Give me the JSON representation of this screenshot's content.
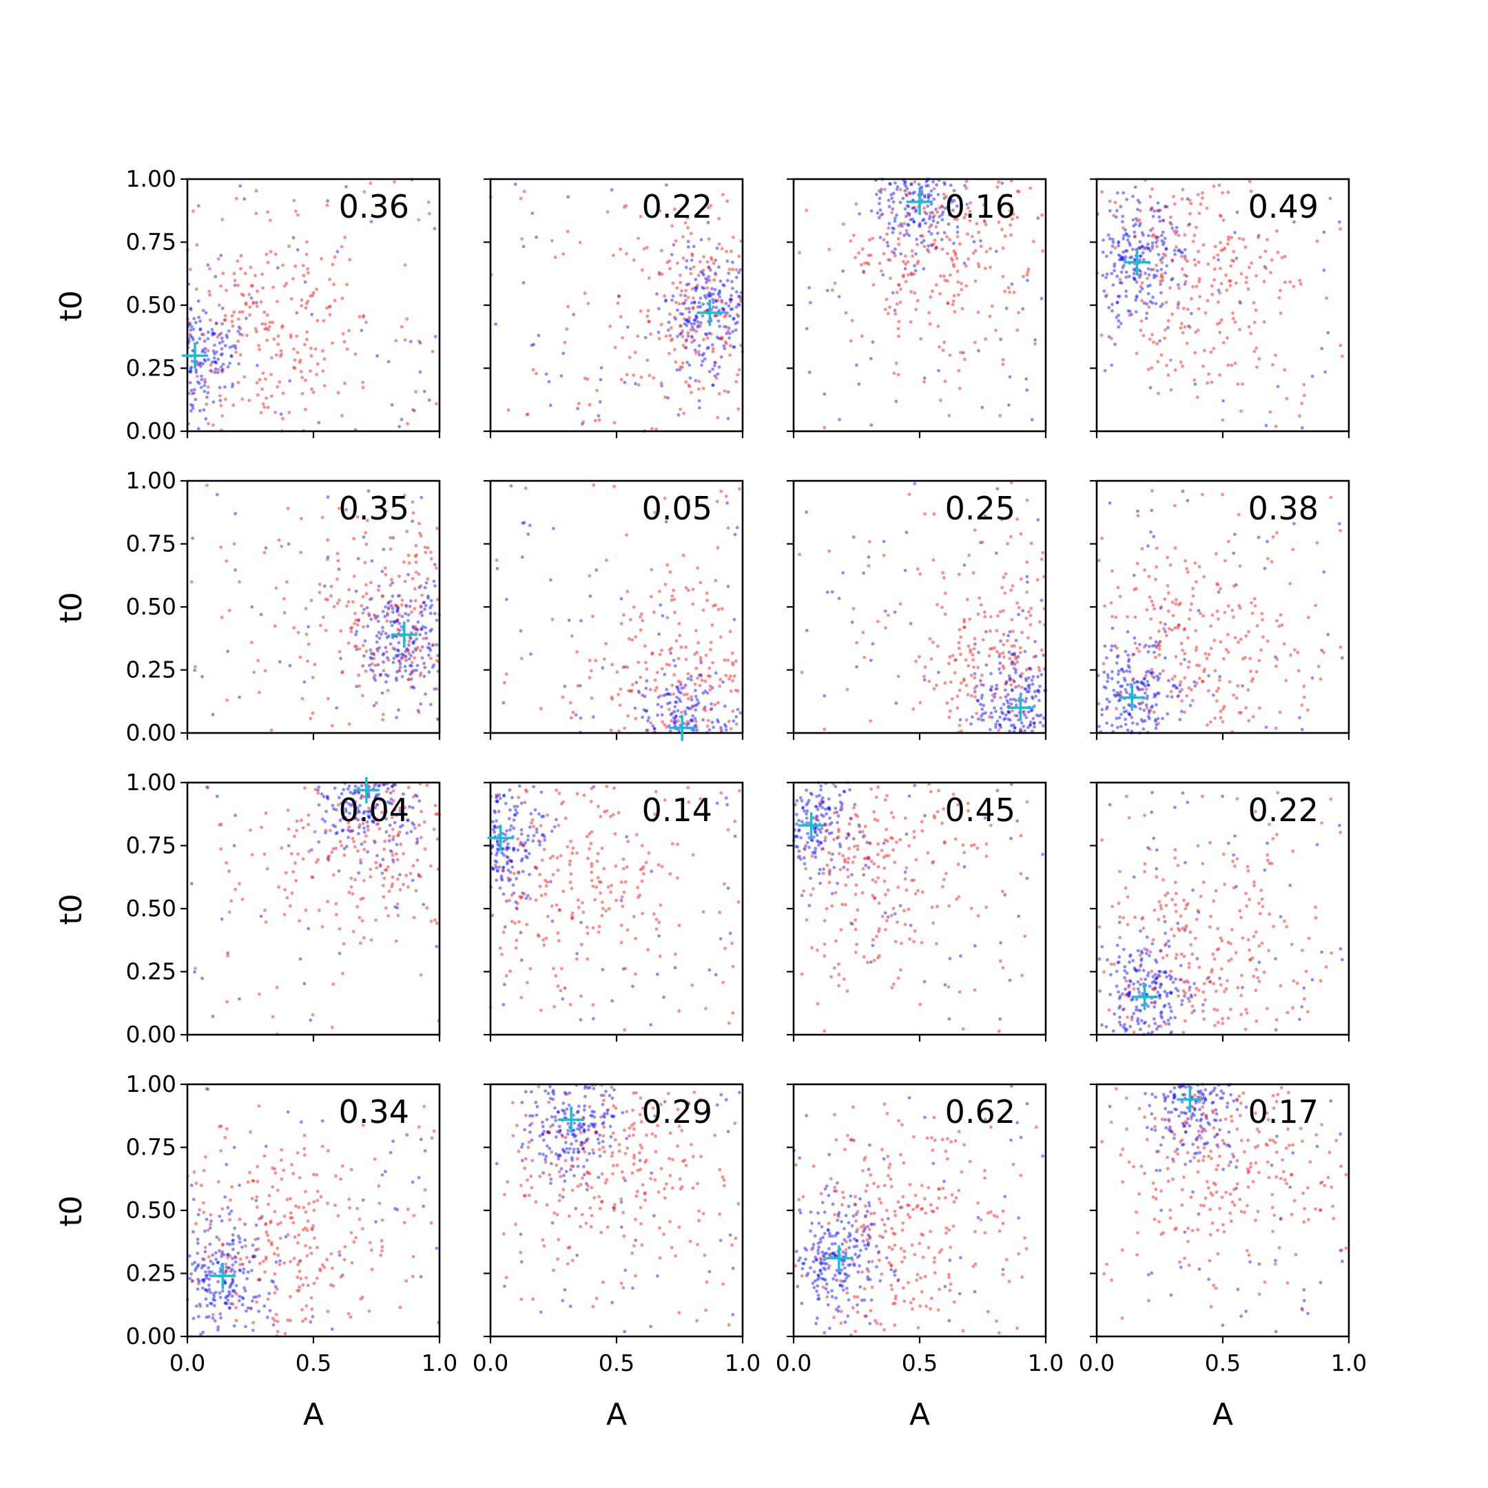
{
  "chart_data": {
    "type": "scatter",
    "layout": "4x4 grid",
    "xlabel": "A",
    "ylabel": "t0",
    "xlim": [
      0.0,
      1.0
    ],
    "ylim": [
      0.0,
      1.0
    ],
    "x_ticks": [
      "0.0",
      "0.5",
      "1.0"
    ],
    "y_ticks": [
      "0.00",
      "0.25",
      "0.50",
      "0.75",
      "1.00"
    ],
    "grid": false,
    "legend": "none",
    "colors": {
      "series_1": "#0000ff",
      "series_2": "#ff0000",
      "marker": "#17becf"
    },
    "marker_style": "+",
    "panels": [
      {
        "value_label": "0.36",
        "marker": {
          "x": 0.03,
          "y": 0.3
        }
      },
      {
        "value_label": "0.22",
        "marker": {
          "x": 0.87,
          "y": 0.47
        }
      },
      {
        "value_label": "0.16",
        "marker": {
          "x": 0.5,
          "y": 0.91
        }
      },
      {
        "value_label": "0.49",
        "marker": {
          "x": 0.16,
          "y": 0.67
        }
      },
      {
        "value_label": "0.35",
        "marker": {
          "x": 0.86,
          "y": 0.39
        }
      },
      {
        "value_label": "0.05",
        "marker": {
          "x": 0.76,
          "y": 0.02
        }
      },
      {
        "value_label": "0.25",
        "marker": {
          "x": 0.9,
          "y": 0.1
        }
      },
      {
        "value_label": "0.38",
        "marker": {
          "x": 0.14,
          "y": 0.14
        }
      },
      {
        "value_label": "0.04",
        "marker": {
          "x": 0.71,
          "y": 0.97
        }
      },
      {
        "value_label": "0.14",
        "marker": {
          "x": 0.04,
          "y": 0.78
        }
      },
      {
        "value_label": "0.45",
        "marker": {
          "x": 0.07,
          "y": 0.83
        }
      },
      {
        "value_label": "0.22",
        "marker": {
          "x": 0.19,
          "y": 0.15
        }
      },
      {
        "value_label": "0.34",
        "marker": {
          "x": 0.14,
          "y": 0.24
        }
      },
      {
        "value_label": "0.29",
        "marker": {
          "x": 0.32,
          "y": 0.86
        }
      },
      {
        "value_label": "0.62",
        "marker": {
          "x": 0.18,
          "y": 0.31
        }
      },
      {
        "value_label": "0.17",
        "marker": {
          "x": 0.37,
          "y": 0.94
        }
      }
    ]
  }
}
